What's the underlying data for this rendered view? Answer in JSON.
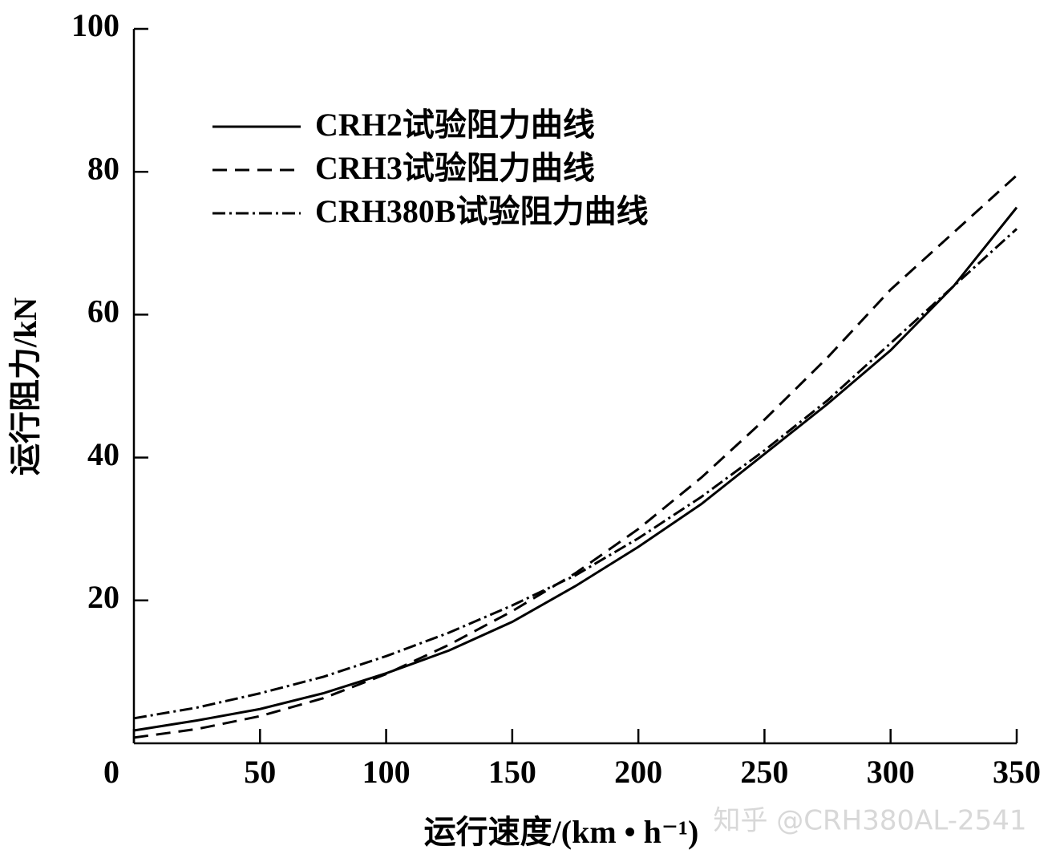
{
  "chart_data": {
    "type": "line",
    "x_label": "运行速度/(km • h⁻¹)",
    "y_label": "运行阻力/kN",
    "x": [
      0,
      25,
      50,
      75,
      100,
      125,
      150,
      175,
      200,
      225,
      250,
      275,
      300,
      325,
      350
    ],
    "series": [
      {
        "name": "CRH2试验阻力曲线",
        "color": "#000000",
        "dash": "solid",
        "values": [
          1.8,
          3.2,
          4.8,
          7.0,
          9.8,
          13,
          17,
          22,
          27.5,
          33.5,
          40.5,
          47.5,
          55,
          64,
          75
        ]
      },
      {
        "name": "CRH3试验阻力曲线",
        "color": "#000000",
        "dash": "dashed",
        "values": [
          0.8,
          2.0,
          3.8,
          6.3,
          9.7,
          13.8,
          18.5,
          23.8,
          30,
          37.2,
          45.3,
          54,
          63.5,
          71.5,
          79.5
        ]
      },
      {
        "name": "CRH380B试验阻力曲线",
        "color": "#000000",
        "dash": "dashdot",
        "values": [
          3.5,
          5.0,
          7.0,
          9.3,
          12.2,
          15.5,
          19.3,
          23.5,
          28.7,
          34.5,
          41,
          48,
          56,
          64,
          72
        ]
      }
    ],
    "xlim": [
      0,
      350
    ],
    "xticks": [
      0,
      50,
      100,
      150,
      200,
      250,
      300,
      350
    ],
    "ylim": [
      0,
      100
    ],
    "yticks": [
      20,
      40,
      60,
      80,
      100
    ],
    "legend": "upper left",
    "watermark": "知乎 @CRH380AL-2541"
  }
}
